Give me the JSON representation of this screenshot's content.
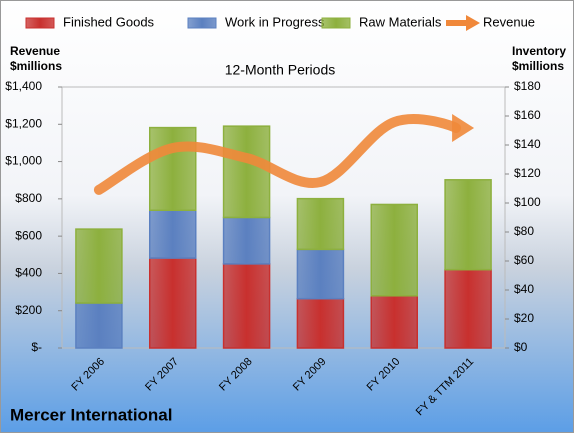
{
  "chart_data": {
    "type": "bar",
    "stacked": true,
    "title": "12-Month Periods",
    "company": "Mercer International",
    "y_label": "Revenue\n$millions",
    "y2_label": "Inventory\n$millions",
    "categories": [
      "FY 2006",
      "FY 2007",
      "FY 2008",
      "FY 2009",
      "FY 2010",
      "FY & TTM 2011"
    ],
    "series": [
      {
        "name": "Finished Goods",
        "color": "#c8302e",
        "axis": "y2",
        "values": [
          0,
          62,
          58,
          34,
          36,
          54
        ]
      },
      {
        "name": "Work in Progress",
        "color": "#5b80c0",
        "axis": "y2",
        "values": [
          31,
          33,
          32,
          34,
          0,
          0
        ]
      },
      {
        "name": "Raw Materials",
        "color": "#8db03e",
        "axis": "y2",
        "values": [
          51,
          57,
          63,
          35,
          63,
          62
        ]
      },
      {
        "name": "Revenue",
        "color": "#f0883a",
        "type": "line",
        "values": [
          848,
          1073,
          1019,
          890,
          1212,
          1180
        ]
      }
    ],
    "ylim": [
      0,
      1400
    ],
    "yticks": [
      {
        "value": 0,
        "label": "$-"
      },
      {
        "value": 200,
        "label": "$200"
      },
      {
        "value": 400,
        "label": "$400"
      },
      {
        "value": 600,
        "label": "$600"
      },
      {
        "value": 800,
        "label": "$800"
      },
      {
        "value": 1000,
        "label": "$1,000"
      },
      {
        "value": 1200,
        "label": "$1,200"
      },
      {
        "value": 1400,
        "label": "$1,400"
      }
    ],
    "y2lim": [
      0,
      180
    ],
    "y2ticks": [
      {
        "value": 0,
        "label": "$0"
      },
      {
        "value": 20,
        "label": "$20"
      },
      {
        "value": 40,
        "label": "$40"
      },
      {
        "value": 60,
        "label": "$60"
      },
      {
        "value": 80,
        "label": "$80"
      },
      {
        "value": 100,
        "label": "$100"
      },
      {
        "value": 120,
        "label": "$120"
      },
      {
        "value": 140,
        "label": "$140"
      },
      {
        "value": 160,
        "label": "$160"
      },
      {
        "value": 180,
        "label": "$180"
      }
    ],
    "grid": false,
    "legend": "top"
  }
}
